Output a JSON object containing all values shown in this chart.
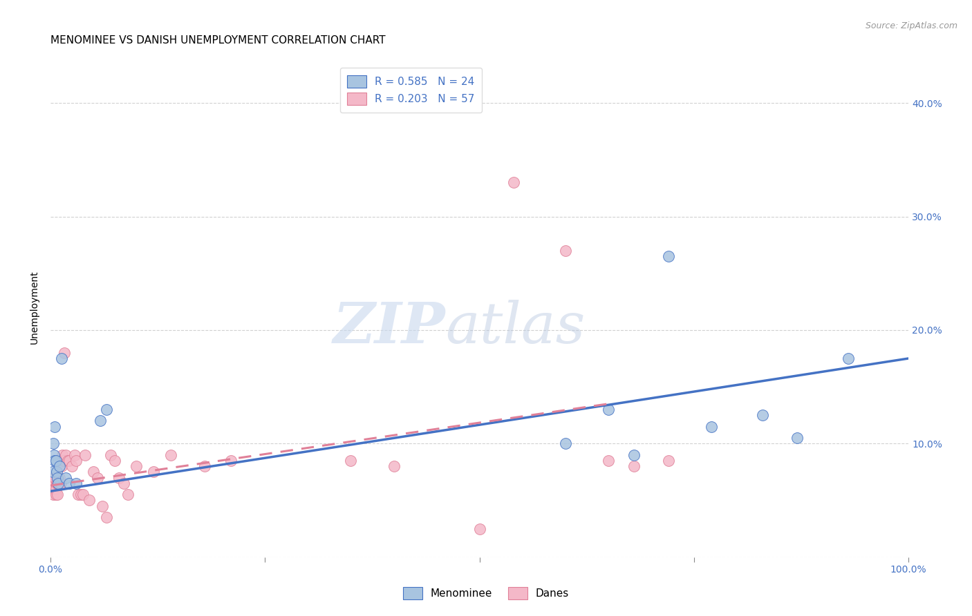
{
  "title": "MENOMINEE VS DANISH UNEMPLOYMENT CORRELATION CHART",
  "source": "Source: ZipAtlas.com",
  "ylabel": "Unemployment",
  "xlim": [
    0.0,
    1.0
  ],
  "ylim": [
    0.0,
    0.44
  ],
  "xticks": [
    0.0,
    0.25,
    0.5,
    0.75,
    1.0
  ],
  "xticklabels": [
    "0.0%",
    "",
    "",
    "",
    "100.0%"
  ],
  "yticks": [
    0.0,
    0.1,
    0.2,
    0.3,
    0.4
  ],
  "yticklabels": [
    "",
    "10.0%",
    "20.0%",
    "30.0%",
    "40.0%"
  ],
  "watermark_zip": "ZIP",
  "watermark_atlas": "atlas",
  "legend1_label": "R = 0.585   N = 24",
  "legend2_label": "R = 0.203   N = 57",
  "menominee_color": "#a8c4e0",
  "danes_color": "#f4b8c8",
  "menominee_edge_color": "#4472c4",
  "danes_edge_color": "#e08098",
  "menominee_line_color": "#4472c4",
  "danes_line_color": "#e08098",
  "background_color": "#ffffff",
  "menominee_x": [
    0.002,
    0.003,
    0.004,
    0.005,
    0.005,
    0.006,
    0.007,
    0.008,
    0.009,
    0.01,
    0.013,
    0.018,
    0.022,
    0.03,
    0.058,
    0.065,
    0.6,
    0.65,
    0.68,
    0.72,
    0.77,
    0.83,
    0.87,
    0.93
  ],
  "menominee_y": [
    0.075,
    0.1,
    0.09,
    0.115,
    0.085,
    0.085,
    0.075,
    0.07,
    0.065,
    0.08,
    0.175,
    0.07,
    0.065,
    0.065,
    0.12,
    0.13,
    0.1,
    0.13,
    0.09,
    0.265,
    0.115,
    0.125,
    0.105,
    0.175
  ],
  "danes_x": [
    0.001,
    0.002,
    0.002,
    0.003,
    0.003,
    0.003,
    0.004,
    0.004,
    0.005,
    0.005,
    0.005,
    0.006,
    0.006,
    0.007,
    0.008,
    0.008,
    0.009,
    0.01,
    0.011,
    0.012,
    0.013,
    0.014,
    0.015,
    0.016,
    0.018,
    0.02,
    0.022,
    0.025,
    0.028,
    0.03,
    0.032,
    0.035,
    0.038,
    0.04,
    0.045,
    0.05,
    0.055,
    0.06,
    0.065,
    0.07,
    0.075,
    0.08,
    0.085,
    0.09,
    0.1,
    0.12,
    0.14,
    0.18,
    0.21,
    0.35,
    0.4,
    0.5,
    0.54,
    0.6,
    0.65,
    0.68,
    0.72
  ],
  "danes_y": [
    0.065,
    0.07,
    0.065,
    0.065,
    0.06,
    0.055,
    0.065,
    0.06,
    0.065,
    0.07,
    0.06,
    0.06,
    0.055,
    0.065,
    0.065,
    0.055,
    0.065,
    0.07,
    0.065,
    0.065,
    0.08,
    0.09,
    0.085,
    0.18,
    0.09,
    0.085,
    0.085,
    0.08,
    0.09,
    0.085,
    0.055,
    0.055,
    0.055,
    0.09,
    0.05,
    0.075,
    0.07,
    0.045,
    0.035,
    0.09,
    0.085,
    0.07,
    0.065,
    0.055,
    0.08,
    0.075,
    0.09,
    0.08,
    0.085,
    0.085,
    0.08,
    0.025,
    0.33,
    0.27,
    0.085,
    0.08,
    0.085
  ],
  "menominee_trend_x": [
    0.0,
    1.0
  ],
  "menominee_trend_y": [
    0.058,
    0.175
  ],
  "danes_trend_x": [
    0.0,
    0.65
  ],
  "danes_trend_y": [
    0.063,
    0.135
  ],
  "title_fontsize": 11,
  "axis_label_fontsize": 10,
  "tick_fontsize": 10,
  "legend_fontsize": 11
}
